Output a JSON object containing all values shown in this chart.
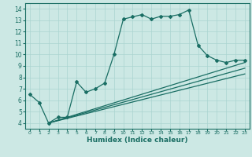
{
  "title": "",
  "xlabel": "Humidex (Indice chaleur)",
  "ylabel": "",
  "xlim": [
    -0.5,
    23.5
  ],
  "ylim": [
    3.5,
    14.5
  ],
  "xticks": [
    0,
    1,
    2,
    3,
    4,
    5,
    6,
    7,
    8,
    9,
    10,
    11,
    12,
    13,
    14,
    15,
    16,
    17,
    18,
    19,
    20,
    21,
    22,
    23
  ],
  "yticks": [
    4,
    5,
    6,
    7,
    8,
    9,
    10,
    11,
    12,
    13,
    14
  ],
  "bg_color": "#cce8e4",
  "grid_color": "#aad4d0",
  "line_color": "#1a6e64",
  "line1_x": [
    0,
    1,
    2,
    3,
    4,
    5,
    6,
    7,
    8,
    9,
    10,
    11,
    12,
    13,
    14,
    15,
    16,
    17,
    18,
    19,
    20,
    21,
    22,
    23
  ],
  "line1_y": [
    6.5,
    5.8,
    4.0,
    4.5,
    4.5,
    7.6,
    6.7,
    7.0,
    7.5,
    10.0,
    13.1,
    13.3,
    13.5,
    13.1,
    13.35,
    13.35,
    13.5,
    13.9,
    10.8,
    9.9,
    9.5,
    9.3,
    9.5,
    9.5
  ],
  "line2_x": [
    2,
    23
  ],
  "line2_y": [
    4.0,
    9.3
  ],
  "line3_x": [
    2,
    23
  ],
  "line3_y": [
    4.0,
    8.8
  ],
  "line4_x": [
    2,
    23
  ],
  "line4_y": [
    4.0,
    8.3
  ]
}
